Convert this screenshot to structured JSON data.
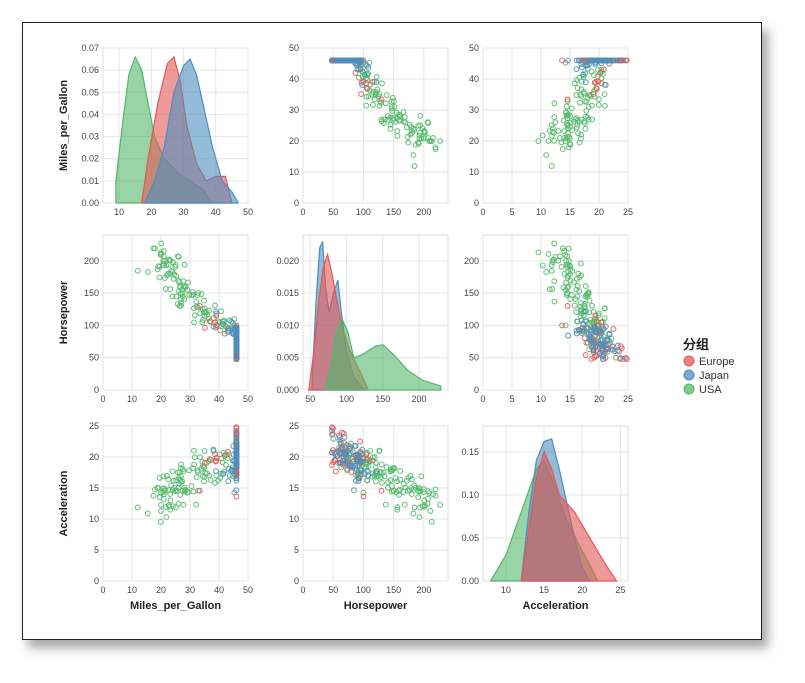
{
  "colors": {
    "Europe": "#e45756",
    "Japan": "#4c8fbe",
    "USA": "#54b86a"
  },
  "legend": {
    "title": "分组",
    "items": [
      "Europe",
      "Japan",
      "USA"
    ]
  },
  "chart_data": {
    "type": "scatter",
    "variables": [
      "Miles_per_Gallon",
      "Horsepower",
      "Acceleration"
    ],
    "axes": {
      "Miles_per_Gallon": {
        "label": "Miles_per_Gallon",
        "range": [
          0,
          50
        ],
        "ticks": [
          "0",
          "10",
          "20",
          "30",
          "40",
          "50"
        ]
      },
      "Horsepower": {
        "label": "Horsepower",
        "range": [
          0,
          240
        ],
        "ticks": [
          "0",
          "50",
          "100",
          "150",
          "200"
        ]
      },
      "Acceleration": {
        "label": "Acceleration",
        "range": [
          0,
          25
        ],
        "ticks": [
          "0",
          "5",
          "10",
          "15",
          "20",
          "25"
        ]
      }
    },
    "density_axes": {
      "Miles_per_Gallon": {
        "range": [
          0,
          0.07
        ],
        "ticks": [
          "0.00",
          "0.01",
          "0.02",
          "0.03",
          "0.04",
          "0.05",
          "0.06",
          "0.07"
        ]
      },
      "Horsepower": {
        "range": [
          0,
          0.024
        ],
        "ticks": [
          "0.000",
          "0.005",
          "0.010",
          "0.015",
          "0.020"
        ]
      },
      "Acceleration": {
        "range": [
          0,
          0.18
        ],
        "ticks": [
          "0.00",
          "0.05",
          "0.10",
          "0.15"
        ]
      }
    },
    "diag_x_ticks": {
      "Miles_per_Gallon": [
        "10",
        "20",
        "30",
        "40",
        "50"
      ],
      "Horsepower": [
        "50",
        "100",
        "150",
        "200"
      ],
      "Acceleration": [
        "10",
        "15",
        "20",
        "25"
      ]
    },
    "diag_x_range": {
      "Miles_per_Gallon": [
        5,
        50
      ],
      "Horsepower": [
        40,
        240
      ],
      "Acceleration": [
        7,
        26
      ]
    },
    "densities": {
      "Miles_per_Gallon": {
        "USA": [
          [
            9,
            0.01
          ],
          [
            11,
            0.035
          ],
          [
            13,
            0.058
          ],
          [
            15,
            0.066
          ],
          [
            17,
            0.06
          ],
          [
            19,
            0.045
          ],
          [
            21,
            0.03
          ],
          [
            24,
            0.02
          ],
          [
            28,
            0.014
          ],
          [
            32,
            0.01
          ],
          [
            36,
            0.006
          ],
          [
            39,
            0.0
          ]
        ],
        "Europe": [
          [
            17,
            0.0
          ],
          [
            19,
            0.02
          ],
          [
            22,
            0.045
          ],
          [
            25,
            0.063
          ],
          [
            27,
            0.066
          ],
          [
            29,
            0.055
          ],
          [
            31,
            0.035
          ],
          [
            34,
            0.018
          ],
          [
            37,
            0.01
          ],
          [
            40,
            0.012
          ],
          [
            43,
            0.012
          ],
          [
            45,
            0.0
          ]
        ],
        "Japan": [
          [
            18,
            0.0
          ],
          [
            21,
            0.01
          ],
          [
            24,
            0.025
          ],
          [
            27,
            0.05
          ],
          [
            30,
            0.062
          ],
          [
            32,
            0.065
          ],
          [
            34,
            0.058
          ],
          [
            36,
            0.045
          ],
          [
            39,
            0.025
          ],
          [
            42,
            0.01
          ],
          [
            45,
            0.005
          ],
          [
            47,
            0.0
          ]
        ]
      },
      "Horsepower": {
        "Japan": [
          [
            52,
            0.0
          ],
          [
            58,
            0.014
          ],
          [
            63,
            0.022
          ],
          [
            67,
            0.023
          ],
          [
            71,
            0.016
          ],
          [
            76,
            0.012
          ],
          [
            82,
            0.015
          ],
          [
            88,
            0.017
          ],
          [
            93,
            0.012
          ],
          [
            100,
            0.006
          ],
          [
            110,
            0.002
          ],
          [
            125,
            0.0
          ]
        ],
        "Europe": [
          [
            48,
            0.0
          ],
          [
            55,
            0.006
          ],
          [
            62,
            0.014
          ],
          [
            68,
            0.019
          ],
          [
            74,
            0.021
          ],
          [
            80,
            0.018
          ],
          [
            88,
            0.013
          ],
          [
            96,
            0.009
          ],
          [
            105,
            0.006
          ],
          [
            118,
            0.003
          ],
          [
            130,
            0.0
          ]
        ],
        "USA": [
          [
            70,
            0.0
          ],
          [
            78,
            0.004
          ],
          [
            86,
            0.009
          ],
          [
            94,
            0.011
          ],
          [
            102,
            0.009
          ],
          [
            110,
            0.005
          ],
          [
            122,
            0.0055
          ],
          [
            140,
            0.0068
          ],
          [
            150,
            0.007
          ],
          [
            165,
            0.0055
          ],
          [
            185,
            0.003
          ],
          [
            205,
            0.0015
          ],
          [
            230,
            0.0006
          ]
        ]
      },
      "Acceleration": {
        "USA": [
          [
            8,
            0.0
          ],
          [
            10,
            0.03
          ],
          [
            12,
            0.08
          ],
          [
            14,
            0.13
          ],
          [
            15,
            0.14
          ],
          [
            16,
            0.12
          ],
          [
            18,
            0.07
          ],
          [
            20,
            0.035
          ],
          [
            21.5,
            0.01
          ],
          [
            22,
            0.0
          ]
        ],
        "Japan": [
          [
            12,
            0.0
          ],
          [
            13,
            0.08
          ],
          [
            14,
            0.14
          ],
          [
            15,
            0.162
          ],
          [
            16,
            0.165
          ],
          [
            17,
            0.13
          ],
          [
            18,
            0.09
          ],
          [
            19,
            0.05
          ],
          [
            20,
            0.015
          ],
          [
            21,
            0.0
          ]
        ],
        "Europe": [
          [
            12,
            0.0
          ],
          [
            13,
            0.06
          ],
          [
            14,
            0.12
          ],
          [
            15,
            0.15
          ],
          [
            16,
            0.13
          ],
          [
            17,
            0.1
          ],
          [
            19,
            0.08
          ],
          [
            21,
            0.05
          ],
          [
            23,
            0.02
          ],
          [
            24.5,
            0.0
          ]
        ]
      }
    }
  }
}
